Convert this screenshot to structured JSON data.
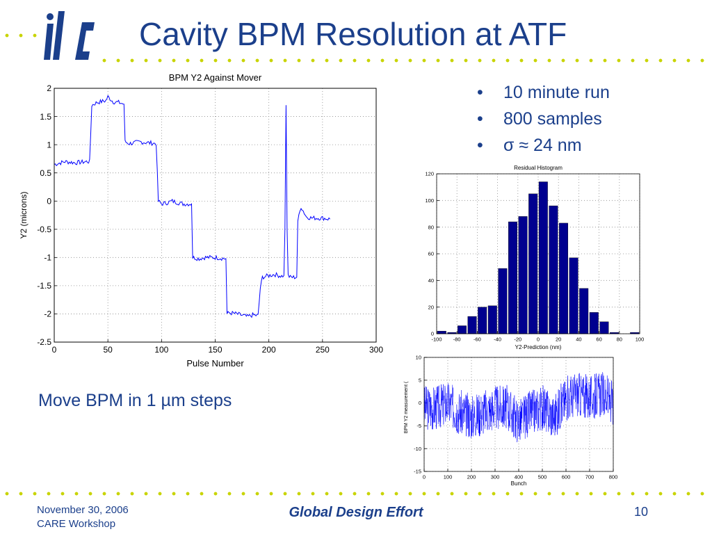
{
  "slide": {
    "title": "Cavity BPM Resolution at ATF",
    "logo_text": "ilc",
    "bullets": [
      "10 minute run",
      "800 samples",
      "σ ≈ 24 nm"
    ],
    "bullet_char": "•",
    "note": "Move BPM in 1 µm steps",
    "footer": {
      "date": "November 30, 2006",
      "workshop": "CARE Workshop",
      "center": "Global Design Effort",
      "page": "10"
    },
    "colors": {
      "title": "#1b3f8b",
      "dots": "#c8d400",
      "series": "#0000ff",
      "bars": "#00008f"
    }
  },
  "chart_data": [
    {
      "type": "line",
      "title": "BPM Y2 Against Mover",
      "xlabel": "Pulse Number",
      "ylabel": "Y2 (microns)",
      "xlim": [
        0,
        300
      ],
      "ylim": [
        -2.5,
        2
      ],
      "xticks": [
        "0",
        "50",
        "100",
        "150",
        "200",
        "250",
        "300"
      ],
      "yticks": [
        "2",
        "1.5",
        "1",
        "0.5",
        "0",
        "-0.5",
        "-1",
        "-1.5",
        "-2",
        "-2.5"
      ],
      "grid": true,
      "series": [
        {
          "x": [
            0,
            10,
            20,
            30,
            33,
            35,
            40,
            48,
            50,
            55,
            60,
            65,
            66,
            70,
            80,
            90,
            95,
            97,
            100,
            105,
            110,
            120,
            128,
            129,
            135,
            140,
            150,
            160,
            161,
            163,
            170,
            180,
            185,
            190,
            192,
            194,
            198,
            205,
            212,
            214,
            215,
            216,
            217,
            218,
            220,
            226,
            227,
            230,
            235,
            240,
            250,
            257
          ],
          "y": [
            0.65,
            0.7,
            0.68,
            0.7,
            0.7,
            1.7,
            1.75,
            1.78,
            1.85,
            1.76,
            1.75,
            1.72,
            1.05,
            1.02,
            1.05,
            1.03,
            1.02,
            0.0,
            -0.05,
            -0.03,
            0.0,
            -0.05,
            -0.05,
            -1.0,
            -1.02,
            -1.0,
            -1.0,
            -1.02,
            -2.0,
            -1.98,
            -2.0,
            -2.05,
            -2.02,
            -2.03,
            -1.55,
            -1.35,
            -1.33,
            -1.3,
            -1.33,
            -1.32,
            -0.5,
            1.7,
            -0.5,
            -1.32,
            -1.35,
            -1.35,
            -0.35,
            -0.1,
            -0.28,
            -0.3,
            -0.3,
            -0.32
          ]
        }
      ]
    },
    {
      "type": "bar",
      "title": "Residual Histogram",
      "xlabel": "Y2-Prediction (nm)",
      "ylabel": "",
      "xlim": [
        -100,
        100
      ],
      "ylim": [
        0,
        120
      ],
      "xticks": [
        "-100",
        "-80",
        "-60",
        "-40",
        "-20",
        "0",
        "20",
        "40",
        "60",
        "80",
        "100"
      ],
      "yticks": [
        "120",
        "100",
        "80",
        "60",
        "40",
        "20",
        "0"
      ],
      "grid": true,
      "categories": [
        -95,
        -85,
        -75,
        -65,
        -55,
        -45,
        -35,
        -25,
        -15,
        -5,
        5,
        15,
        25,
        35,
        45,
        55,
        65,
        75,
        85,
        95
      ],
      "values": [
        2,
        1,
        6,
        13,
        20,
        21,
        49,
        84,
        88,
        105,
        114,
        96,
        83,
        57,
        34,
        16,
        9,
        1,
        0,
        1
      ]
    },
    {
      "type": "line",
      "title": "",
      "xlabel": "Bunch",
      "ylabel": "BPM Y2 measurement (",
      "xlim": [
        0,
        800
      ],
      "ylim": [
        -15,
        10
      ],
      "xticks": [
        "0",
        "100",
        "200",
        "300",
        "400",
        "500",
        "600",
        "700",
        "800"
      ],
      "yticks": [
        "10",
        "5",
        "0",
        "-5",
        "-10",
        "-15"
      ],
      "grid": true,
      "series": [
        {
          "x": [
            0,
            50,
            100,
            150,
            200,
            250,
            300,
            350,
            400,
            450,
            500,
            550,
            600,
            650,
            700,
            750,
            800
          ],
          "y": [
            -1,
            -1,
            0,
            -2,
            -3,
            -2,
            -1,
            -1,
            -4,
            -2,
            -1,
            -3,
            1,
            2,
            1,
            2,
            0
          ]
        }
      ]
    }
  ]
}
